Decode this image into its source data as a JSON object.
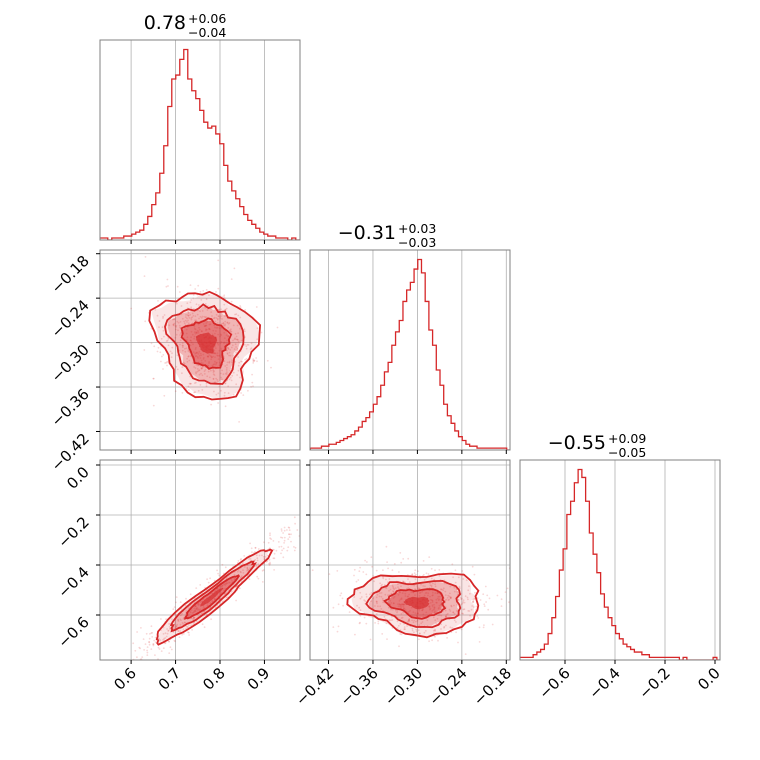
{
  "chart_data": {
    "type": "corner",
    "color": "#d62728",
    "grid": true,
    "parameters": [
      {
        "median": "0.78",
        "plus": "+0.06",
        "minus": "−0.04",
        "range": [
          0.53,
          0.98
        ],
        "ticks": [
          0.6,
          0.7,
          0.8,
          0.9
        ],
        "tick_labels": [
          "0.6",
          "0.7",
          "0.8",
          "0.9"
        ]
      },
      {
        "median": "−0.31",
        "plus": "+0.03",
        "minus": "−0.03",
        "range": [
          -0.445,
          -0.175
        ],
        "ticks": [
          -0.42,
          -0.36,
          -0.3,
          -0.24,
          -0.18
        ],
        "tick_labels": [
          "−0.42",
          "−0.36",
          "−0.30",
          "−0.24",
          "−0.18"
        ]
      },
      {
        "median": "−0.55",
        "plus": "+0.09",
        "minus": "−0.05",
        "range": [
          -0.78,
          0.02
        ],
        "ticks": [
          -0.6,
          -0.4,
          -0.2,
          0.0
        ],
        "tick_labels": [
          "−0.6",
          "−0.4",
          "−0.2",
          "0.0"
        ]
      }
    ],
    "panels": [
      {
        "type": "histogram",
        "param": 0,
        "bins": [
          0.534,
          0.543,
          0.552,
          0.561,
          0.57,
          0.579,
          0.588,
          0.597,
          0.606,
          0.615,
          0.624,
          0.633,
          0.642,
          0.651,
          0.66,
          0.669,
          0.678,
          0.687,
          0.696,
          0.705,
          0.714,
          0.723,
          0.732,
          0.741,
          0.75,
          0.759,
          0.768,
          0.777,
          0.786,
          0.795,
          0.804,
          0.813,
          0.822,
          0.831,
          0.84,
          0.849,
          0.858,
          0.867,
          0.876,
          0.885,
          0.894,
          0.903,
          0.912,
          0.921,
          0.93,
          0.939,
          0.948,
          0.957,
          0.966,
          0.975
        ],
        "counts": [
          1,
          1,
          0,
          1,
          1,
          1,
          2,
          2,
          3,
          4,
          5,
          8,
          12,
          18,
          24,
          34,
          48,
          68,
          82,
          84,
          92,
          97,
          82,
          76,
          72,
          66,
          60,
          57,
          58,
          54,
          49,
          38,
          30,
          25,
          21,
          17,
          13,
          10,
          8,
          6,
          4,
          3,
          2,
          2,
          1,
          1,
          1,
          0,
          1,
          0
        ]
      },
      {
        "type": "2d",
        "x": 0,
        "y": 1,
        "contours": 4,
        "center": [
          0.77,
          -0.3
        ]
      },
      {
        "type": "histogram",
        "param": 1,
        "bins": [
          -0.442,
          -0.437,
          -0.432,
          -0.427,
          -0.422,
          -0.417,
          -0.412,
          -0.407,
          -0.402,
          -0.397,
          -0.392,
          -0.387,
          -0.382,
          -0.377,
          -0.372,
          -0.367,
          -0.362,
          -0.357,
          -0.352,
          -0.347,
          -0.342,
          -0.337,
          -0.332,
          -0.327,
          -0.322,
          -0.317,
          -0.312,
          -0.307,
          -0.302,
          -0.297,
          -0.292,
          -0.287,
          -0.282,
          -0.277,
          -0.272,
          -0.267,
          -0.262,
          -0.257,
          -0.252,
          -0.247,
          -0.242,
          -0.237,
          -0.232,
          -0.227,
          -0.222,
          -0.217,
          -0.212,
          -0.207,
          -0.202,
          -0.197,
          -0.192,
          -0.187,
          -0.182,
          -0.177
        ],
        "counts": [
          1,
          1,
          1,
          2,
          2,
          3,
          3,
          4,
          5,
          6,
          7,
          8,
          10,
          12,
          15,
          17,
          20,
          24,
          28,
          34,
          41,
          46,
          55,
          62,
          68,
          78,
          84,
          88,
          95,
          100,
          93,
          78,
          63,
          55,
          42,
          34,
          24,
          18,
          14,
          10,
          7,
          5,
          3,
          2,
          2,
          1,
          1,
          1,
          1,
          1,
          1,
          1,
          1,
          0
        ]
      },
      {
        "type": "2d",
        "x": 0,
        "y": 2,
        "contours": 4,
        "center": [
          0.78,
          -0.53
        ]
      },
      {
        "type": "2d",
        "x": 1,
        "y": 2,
        "contours": 4,
        "center": [
          -0.3,
          -0.55
        ]
      },
      {
        "type": "histogram",
        "param": 2,
        "bins": [
          -0.78,
          -0.765,
          -0.75,
          -0.735,
          -0.72,
          -0.705,
          -0.69,
          -0.675,
          -0.66,
          -0.645,
          -0.63,
          -0.615,
          -0.6,
          -0.585,
          -0.57,
          -0.555,
          -0.54,
          -0.525,
          -0.51,
          -0.495,
          -0.48,
          -0.465,
          -0.45,
          -0.435,
          -0.42,
          -0.405,
          -0.39,
          -0.375,
          -0.36,
          -0.345,
          -0.33,
          -0.315,
          -0.3,
          -0.285,
          -0.27,
          -0.255,
          -0.24,
          -0.225,
          -0.21,
          -0.195,
          -0.18,
          -0.165,
          -0.15,
          -0.135,
          -0.12,
          -0.105,
          -0.09,
          -0.075,
          -0.06,
          -0.045,
          -0.03,
          -0.015,
          0.0,
          0.015
        ],
        "counts": [
          1,
          1,
          1,
          1,
          2,
          3,
          4,
          6,
          10,
          16,
          24,
          34,
          42,
          55,
          60,
          67,
          72,
          69,
          60,
          48,
          40,
          33,
          25,
          20,
          16,
          13,
          10,
          8,
          6,
          5,
          4,
          3,
          3,
          2,
          2,
          1,
          1,
          1,
          1,
          1,
          1,
          1,
          1,
          0,
          1,
          0,
          0,
          0,
          0,
          0,
          0,
          0,
          1,
          0
        ]
      }
    ]
  }
}
